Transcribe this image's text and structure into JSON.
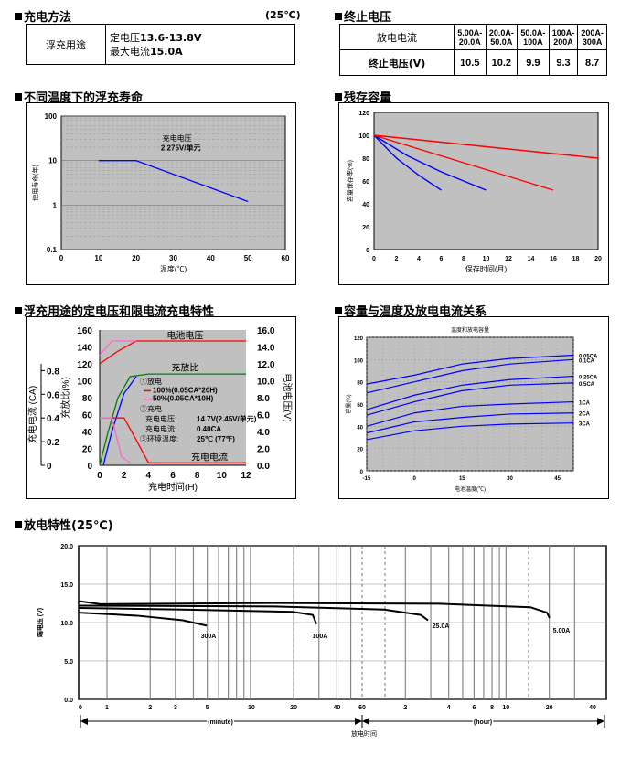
{
  "charge": {
    "title": "充电方法",
    "temp": "(25℃)",
    "usage": "浮充用途",
    "line1_prefix": "定电压",
    "line1_value": "13.6-13.8V",
    "line2_prefix": "最大电流",
    "line2_value": "15.0A"
  },
  "cutoff": {
    "title": "终止电压",
    "label_current": "放电电流",
    "label_voltage": "终止电压(V)",
    "currents": [
      "5.00A-\n20.0A",
      "20.0A-\n50.0A",
      "50.0A-\n100A",
      "100A-\n200A",
      "200A-\n300A"
    ],
    "voltages": [
      "10.5",
      "10.2",
      "9.9",
      "9.3",
      "8.7"
    ]
  },
  "chart_data": [
    {
      "type": "line",
      "title": "不同温度下的浮充寿命",
      "xlabel": "温度(℃)",
      "ylabel": "使用寿命(年)",
      "xlim": [
        0,
        60
      ],
      "ylim": [
        0.1,
        100
      ],
      "yscale": "log",
      "xticks": [
        "0",
        "10",
        "20",
        "30",
        "40",
        "50",
        "60"
      ],
      "yticks": [
        "0.1",
        "1",
        "10",
        "100"
      ],
      "annotation": [
        "充电电压",
        "2.275V/单元"
      ],
      "series": [
        {
          "color": "#0000ff",
          "x": [
            10,
            20,
            50
          ],
          "y": [
            10,
            10,
            1.2
          ]
        }
      ]
    },
    {
      "type": "line",
      "title": "残存容量",
      "xlabel": "保存时间(月)",
      "ylabel": "容量保存率(%)",
      "xlim": [
        0,
        20
      ],
      "ylim": [
        0,
        120
      ],
      "xticks": [
        "0",
        "2",
        "4",
        "6",
        "8",
        "10",
        "12",
        "14",
        "16",
        "18",
        "20"
      ],
      "yticks": [
        "0",
        "20",
        "40",
        "60",
        "80",
        "100",
        "120"
      ],
      "series": [
        {
          "color": "#0000ff",
          "x": [
            0,
            2,
            4,
            6
          ],
          "y": [
            100,
            80,
            65,
            52
          ]
        },
        {
          "color": "#0000ff",
          "x": [
            0,
            3,
            6,
            10
          ],
          "y": [
            100,
            82,
            68,
            52
          ]
        },
        {
          "color": "#ff0000",
          "x": [
            0,
            16
          ],
          "y": [
            100,
            52
          ]
        },
        {
          "color": "#ff0000",
          "x": [
            0,
            20
          ],
          "y": [
            100,
            80
          ]
        }
      ]
    },
    {
      "type": "line",
      "title": "浮充用途的定电压和限电流充电特性",
      "xlabel": "充电时间(H)",
      "ylabel_left_outer": "充电电流 (CA)",
      "ylabel_left_inner": "充放比(%)",
      "ylabel_right": "电池电压(V)",
      "xlim": [
        0,
        12
      ],
      "xticks": [
        "0",
        "2",
        "4",
        "6",
        "8",
        "10",
        "12"
      ],
      "yticks_pct": [
        "0",
        "20",
        "40",
        "60",
        "80",
        "100",
        "120",
        "140",
        "160"
      ],
      "yticks_ca": [
        "0",
        "0.2",
        "0.4",
        "0.6",
        "0.8"
      ],
      "yticks_v": [
        "0.0",
        "2.0",
        "4.0",
        "6.0",
        "8.0",
        "10.0",
        "12.0",
        "14.0",
        "16.0"
      ],
      "labels": {
        "voltage": "电池电压",
        "ratio": "充放比",
        "current": "充电电流"
      },
      "legend": {
        "discharge": "①放电",
        "s100": "100%(0.05CA*20H)",
        "s50": "50%(0.05CA*10H)",
        "charge": "②充电",
        "v_label": "充电电压:",
        "v_value": "14.7V(2.45V/单元)",
        "c_label": "充电电流:",
        "c_value": "0.40CA",
        "t_label": "③环境温度:",
        "t_value": "25℃ (77℉)"
      },
      "series": [
        {
          "name": "电池电压",
          "color": "#ff0000"
        },
        {
          "name": "充放比",
          "color": "#008000"
        },
        {
          "name": "充电电流",
          "color": "#ff0000"
        }
      ]
    },
    {
      "type": "line",
      "title": "容量与温度及放电电流关系",
      "subtitle": "温度和放电容量",
      "xlabel": "电池温度(℃)",
      "ylabel": "容量(%)",
      "xlim": [
        -15,
        50
      ],
      "ylim": [
        0,
        120
      ],
      "xticks": [
        "-15",
        "0",
        "15",
        "30",
        "45"
      ],
      "yticks": [
        "0",
        "20",
        "40",
        "60",
        "80",
        "100",
        "120"
      ],
      "series": [
        {
          "name": "0.05CA",
          "x": [
            -15,
            0,
            15,
            30,
            50
          ],
          "y": [
            78,
            86,
            96,
            101,
            104
          ]
        },
        {
          "name": "0.1CA",
          "x": [
            -15,
            0,
            15,
            30,
            50
          ],
          "y": [
            70,
            80,
            90,
            96,
            100
          ]
        },
        {
          "name": "0.25CA",
          "x": [
            -15,
            0,
            15,
            30,
            50
          ],
          "y": [
            55,
            68,
            77,
            82,
            85
          ]
        },
        {
          "name": "0.5CA",
          "x": [
            -15,
            0,
            15,
            30,
            50
          ],
          "y": [
            50,
            62,
            72,
            77,
            79
          ]
        },
        {
          "name": "1CA",
          "x": [
            -15,
            0,
            15,
            30,
            50
          ],
          "y": [
            40,
            52,
            58,
            60,
            62
          ]
        },
        {
          "name": "2CA",
          "x": [
            -15,
            0,
            15,
            30,
            50
          ],
          "y": [
            34,
            44,
            48,
            51,
            52
          ]
        },
        {
          "name": "3CA",
          "x": [
            -15,
            0,
            15,
            30,
            50
          ],
          "y": [
            28,
            36,
            40,
            42,
            43
          ]
        }
      ]
    },
    {
      "type": "line",
      "title": "放电特性(25℃)",
      "xlabel": "放电时间",
      "ylabel": "端电压 (V)",
      "ylim": [
        0,
        20
      ],
      "yticks": [
        "0.0",
        "5.0",
        "10.0",
        "15.0",
        "20.0"
      ],
      "xticks_minute": [
        "0",
        "1",
        "2",
        "3",
        "5",
        "10",
        "20",
        "40",
        "60"
      ],
      "xticks_hour": [
        "2",
        "4",
        "6",
        "8",
        "10",
        "20",
        "40"
      ],
      "unit_minute": "(minute)",
      "unit_hour": "(hour)",
      "series": [
        {
          "name": "300A",
          "end": 5
        },
        {
          "name": "100A",
          "end": 30
        },
        {
          "name": "25.0A",
          "end": 3
        },
        {
          "name": "5.00A",
          "end": 20
        }
      ]
    }
  ]
}
